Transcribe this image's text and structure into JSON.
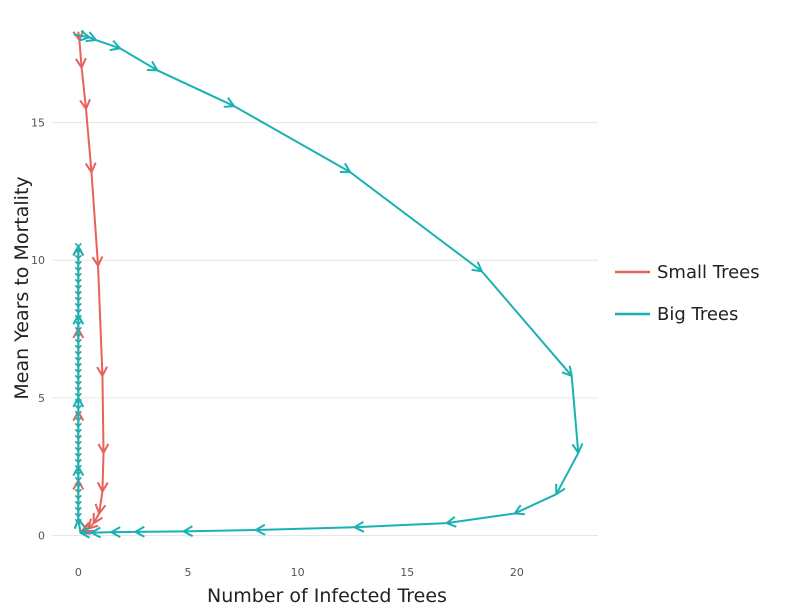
{
  "chart_data": {
    "type": "line",
    "xlabel": "Number of Infected Trees",
    "ylabel": "Mean Years to Mortality",
    "xlim": [
      -1.2,
      23.7
    ],
    "ylim": [
      -0.6,
      18.8
    ],
    "x_ticks": [
      0,
      5,
      10,
      15,
      20
    ],
    "y_ticks": [
      0,
      5,
      10,
      15
    ],
    "grid": "horizontal",
    "legend_position": "right",
    "arrows": true,
    "series": [
      {
        "name": "Small Trees",
        "color": "#e8615a",
        "points": [
          [
            0.0,
            18.3
          ],
          [
            0.05,
            18.0
          ],
          [
            0.15,
            17.0
          ],
          [
            0.35,
            15.5
          ],
          [
            0.6,
            13.2
          ],
          [
            0.9,
            9.8
          ],
          [
            1.1,
            5.8
          ],
          [
            1.15,
            3.0
          ],
          [
            1.1,
            1.6
          ],
          [
            0.95,
            0.8
          ],
          [
            0.7,
            0.45
          ],
          [
            0.45,
            0.25
          ],
          [
            0.25,
            0.15
          ],
          [
            0.1,
            0.1
          ],
          [
            0.0,
            0.6
          ],
          [
            0.0,
            2.0
          ],
          [
            0.0,
            4.5
          ],
          [
            0.0,
            7.5
          ],
          [
            0.0,
            10.5
          ]
        ]
      },
      {
        "name": "Big Trees",
        "color": "#19b2b4",
        "points": [
          [
            -0.2,
            18.2
          ],
          [
            0.5,
            18.1
          ],
          [
            0.8,
            18.0
          ],
          [
            1.9,
            17.7
          ],
          [
            3.6,
            16.9
          ],
          [
            7.1,
            15.6
          ],
          [
            12.4,
            13.2
          ],
          [
            18.4,
            9.6
          ],
          [
            22.5,
            5.8
          ],
          [
            22.8,
            3.0
          ],
          [
            21.8,
            1.5
          ],
          [
            19.9,
            0.8
          ],
          [
            16.8,
            0.45
          ],
          [
            12.6,
            0.3
          ],
          [
            8.1,
            0.2
          ],
          [
            4.8,
            0.15
          ],
          [
            2.6,
            0.13
          ],
          [
            1.5,
            0.12
          ],
          [
            0.6,
            0.1
          ],
          [
            0.1,
            0.1
          ],
          [
            0.0,
            0.6
          ],
          [
            0.0,
            2.5
          ],
          [
            0.0,
            5.0
          ],
          [
            0.0,
            8.0
          ],
          [
            0.0,
            10.5
          ]
        ]
      }
    ]
  }
}
